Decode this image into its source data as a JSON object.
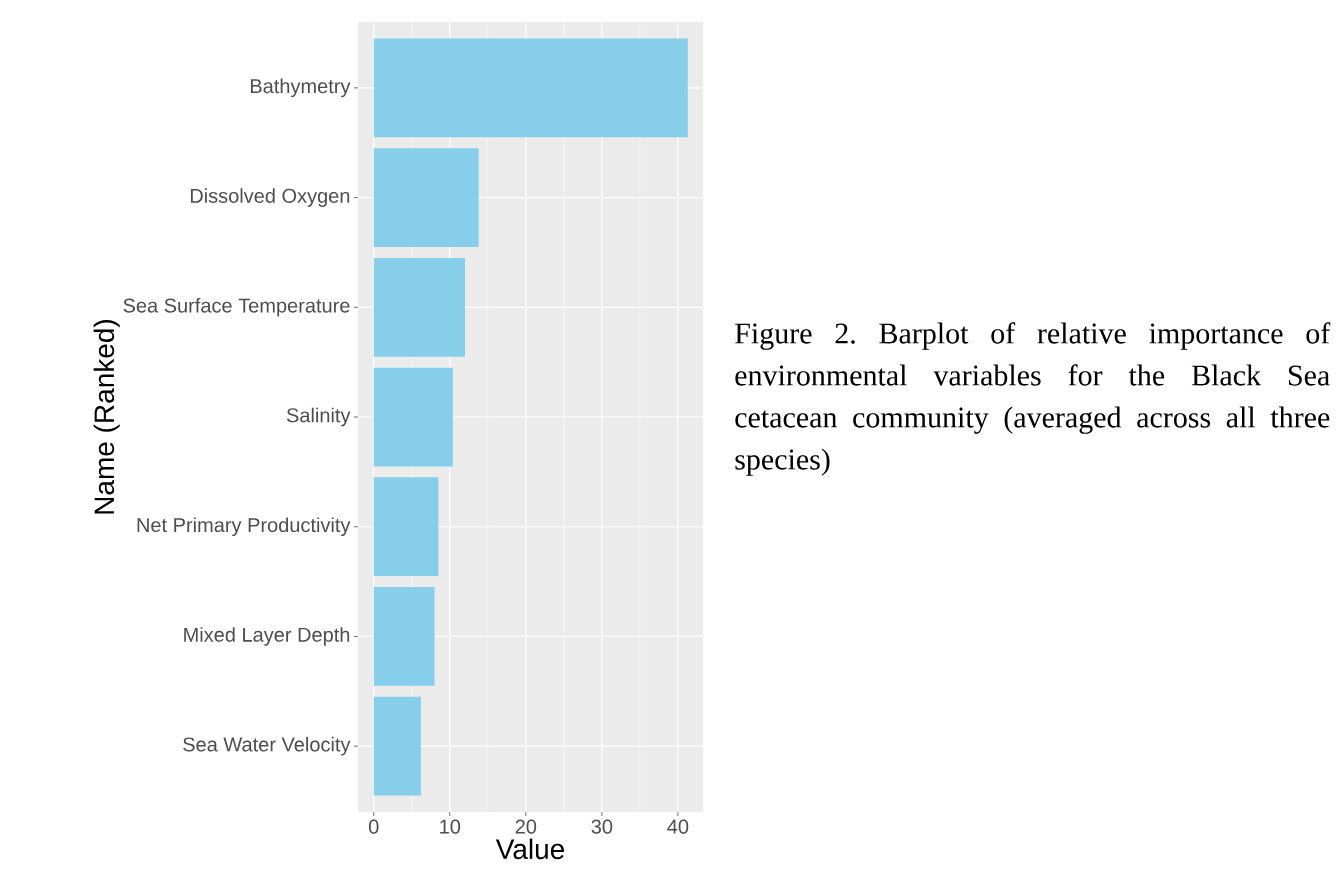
{
  "chart_data": {
    "type": "bar",
    "orientation": "horizontal",
    "xlabel": "Value",
    "ylabel": "Name (Ranked)",
    "categories": [
      "Bathymetry",
      "Dissolved Oxygen",
      "Sea Surface Temperature",
      "Salinity",
      "Net Primary Productivity",
      "Mixed Layer Depth",
      "Sea Water Velocity"
    ],
    "values": [
      41.3,
      13.8,
      12.0,
      10.4,
      8.5,
      8.0,
      6.2
    ],
    "color": "#87ceeb",
    "xlim": [
      -2.07,
      43.3
    ],
    "xticks": [
      0,
      10,
      20,
      30,
      40
    ],
    "grid": true,
    "annotations": [
      "Figure 2. Barplot of relative importance of environmental variables for the Black Sea cetacean community (averaged across all three species)"
    ]
  }
}
